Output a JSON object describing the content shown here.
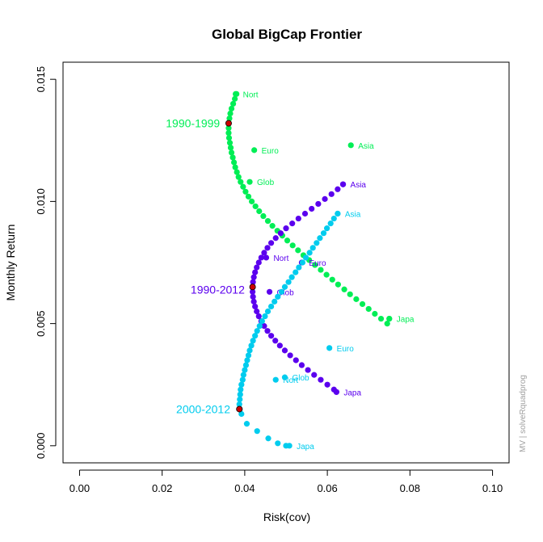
{
  "chart_data": {
    "type": "scatter",
    "title": "Global BigCap Frontier",
    "xlabel": "Risk(cov)",
    "ylabel": "Monthly Return",
    "xlim": [
      -0.004,
      0.104
    ],
    "ylim": [
      -0.0007,
      0.0157
    ],
    "xticks": [
      "0.00",
      "0.02",
      "0.04",
      "0.06",
      "0.08",
      "0.10"
    ],
    "yticks": [
      "0.000",
      "0.005",
      "0.010",
      "0.015"
    ],
    "grid": false,
    "legend": "none",
    "credit": "MV | solveRquadprog",
    "series": [
      {
        "name": "1990-1999",
        "color": "#00ee55",
        "frontier": [
          [
            0.038,
            0.0144
          ],
          [
            0.0376,
            0.0142
          ],
          [
            0.0372,
            0.014
          ],
          [
            0.0368,
            0.0138
          ],
          [
            0.0365,
            0.0136
          ],
          [
            0.0363,
            0.0134
          ],
          [
            0.0361,
            0.0132
          ],
          [
            0.0361,
            0.013
          ],
          [
            0.0361,
            0.0128
          ],
          [
            0.0362,
            0.0126
          ],
          [
            0.0364,
            0.0124
          ],
          [
            0.0366,
            0.0122
          ],
          [
            0.0368,
            0.012
          ],
          [
            0.0371,
            0.0118
          ],
          [
            0.0374,
            0.0116
          ],
          [
            0.0377,
            0.0114
          ],
          [
            0.0381,
            0.0112
          ],
          [
            0.0385,
            0.011
          ],
          [
            0.039,
            0.0108
          ],
          [
            0.0396,
            0.0106
          ],
          [
            0.0402,
            0.0104
          ],
          [
            0.0409,
            0.0102
          ],
          [
            0.0417,
            0.01
          ],
          [
            0.0426,
            0.0098
          ],
          [
            0.0435,
            0.0096
          ],
          [
            0.0445,
            0.0094
          ],
          [
            0.0456,
            0.0092
          ],
          [
            0.0467,
            0.009
          ],
          [
            0.0479,
            0.0088
          ],
          [
            0.0491,
            0.0086
          ],
          [
            0.0503,
            0.0084
          ],
          [
            0.0516,
            0.0082
          ],
          [
            0.0529,
            0.008
          ],
          [
            0.0542,
            0.0078
          ],
          [
            0.0556,
            0.0076
          ],
          [
            0.057,
            0.0074
          ],
          [
            0.0584,
            0.0072
          ],
          [
            0.0598,
            0.007
          ],
          [
            0.0612,
            0.0068
          ],
          [
            0.0626,
            0.0066
          ],
          [
            0.0641,
            0.0064
          ],
          [
            0.0655,
            0.0062
          ],
          [
            0.067,
            0.006
          ],
          [
            0.0685,
            0.0058
          ],
          [
            0.07,
            0.0056
          ],
          [
            0.0715,
            0.0054
          ],
          [
            0.073,
            0.0052
          ],
          [
            0.0745,
            0.005
          ],
          [
            0.075,
            0.0052
          ]
        ],
        "min_variance": [
          0.0361,
          0.0132
        ],
        "assets": [
          {
            "name": "Nort",
            "x": 0.0378,
            "y": 0.0144
          },
          {
            "name": "Euro",
            "x": 0.0423,
            "y": 0.0121
          },
          {
            "name": "Asia",
            "x": 0.0657,
            "y": 0.0123
          },
          {
            "name": "Glob",
            "x": 0.0412,
            "y": 0.0108
          },
          {
            "name": "Japa",
            "x": 0.075,
            "y": 0.0052
          }
        ],
        "label_anchor": [
          0.034,
          0.0132
        ]
      },
      {
        "name": "1990-2012",
        "color": "#5b00ee",
        "frontier": [
          [
            0.0638,
            0.0107
          ],
          [
            0.0625,
            0.0105
          ],
          [
            0.061,
            0.0103
          ],
          [
            0.0594,
            0.0101
          ],
          [
            0.0578,
            0.0099
          ],
          [
            0.0562,
            0.0097
          ],
          [
            0.0546,
            0.0095
          ],
          [
            0.053,
            0.0093
          ],
          [
            0.0515,
            0.0091
          ],
          [
            0.05,
            0.0089
          ],
          [
            0.0487,
            0.0087
          ],
          [
            0.0475,
            0.0085
          ],
          [
            0.0464,
            0.0083
          ],
          [
            0.0455,
            0.0081
          ],
          [
            0.0447,
            0.0079
          ],
          [
            0.044,
            0.0077
          ],
          [
            0.0434,
            0.0075
          ],
          [
            0.0429,
            0.0073
          ],
          [
            0.0425,
            0.0071
          ],
          [
            0.0422,
            0.0069
          ],
          [
            0.042,
            0.0067
          ],
          [
            0.0419,
            0.0065
          ],
          [
            0.0419,
            0.0063
          ],
          [
            0.042,
            0.0061
          ],
          [
            0.0422,
            0.0059
          ],
          [
            0.0425,
            0.0057
          ],
          [
            0.0429,
            0.0055
          ],
          [
            0.0434,
            0.0053
          ],
          [
            0.044,
            0.0051
          ],
          [
            0.0447,
            0.0049
          ],
          [
            0.0455,
            0.0047
          ],
          [
            0.0464,
            0.0045
          ],
          [
            0.0474,
            0.0043
          ],
          [
            0.0485,
            0.0041
          ],
          [
            0.0497,
            0.0039
          ],
          [
            0.051,
            0.0037
          ],
          [
            0.0524,
            0.0035
          ],
          [
            0.0538,
            0.0033
          ],
          [
            0.0553,
            0.0031
          ],
          [
            0.0568,
            0.0029
          ],
          [
            0.0584,
            0.0027
          ],
          [
            0.06,
            0.0025
          ],
          [
            0.0616,
            0.0023
          ],
          [
            0.0622,
            0.0022
          ]
        ],
        "min_variance": [
          0.0419,
          0.0065
        ],
        "assets": [
          {
            "name": "Asia",
            "x": 0.0638,
            "y": 0.0107
          },
          {
            "name": "Nort",
            "x": 0.0452,
            "y": 0.0077
          },
          {
            "name": "Euro",
            "x": 0.0538,
            "y": 0.0075
          },
          {
            "name": "Glob",
            "x": 0.046,
            "y": 0.0063
          },
          {
            "name": "Japa",
            "x": 0.0622,
            "y": 0.0022
          }
        ],
        "label_anchor": [
          0.04,
          0.0064
        ]
      },
      {
        "name": "2000-2012",
        "color": "#00ccee",
        "frontier": [
          [
            0.0625,
            0.0095
          ],
          [
            0.0616,
            0.0093
          ],
          [
            0.0608,
            0.0091
          ],
          [
            0.0599,
            0.0089
          ],
          [
            0.0591,
            0.0087
          ],
          [
            0.0582,
            0.0085
          ],
          [
            0.0574,
            0.0083
          ],
          [
            0.0565,
            0.0081
          ],
          [
            0.0557,
            0.0079
          ],
          [
            0.0548,
            0.0077
          ],
          [
            0.054,
            0.0075
          ],
          [
            0.0531,
            0.0073
          ],
          [
            0.0523,
            0.0071
          ],
          [
            0.0514,
            0.0069
          ],
          [
            0.0506,
            0.0067
          ],
          [
            0.0497,
            0.0065
          ],
          [
            0.0489,
            0.0063
          ],
          [
            0.048,
            0.0061
          ],
          [
            0.0472,
            0.0059
          ],
          [
            0.0464,
            0.0057
          ],
          [
            0.0456,
            0.0055
          ],
          [
            0.0449,
            0.0053
          ],
          [
            0.0442,
            0.0051
          ],
          [
            0.0436,
            0.0049
          ],
          [
            0.043,
            0.0047
          ],
          [
            0.0425,
            0.0045
          ],
          [
            0.042,
            0.0043
          ],
          [
            0.0416,
            0.0041
          ],
          [
            0.0412,
            0.0039
          ],
          [
            0.0409,
            0.0037
          ],
          [
            0.0406,
            0.0035
          ],
          [
            0.0403,
            0.0033
          ],
          [
            0.04,
            0.0031
          ],
          [
            0.0397,
            0.0029
          ],
          [
            0.0395,
            0.0027
          ],
          [
            0.0392,
            0.0025
          ],
          [
            0.039,
            0.0023
          ],
          [
            0.0389,
            0.0021
          ],
          [
            0.0388,
            0.0019
          ],
          [
            0.0387,
            0.0017
          ],
          [
            0.0388,
            0.0015
          ],
          [
            0.0392,
            0.0013
          ],
          [
            0.0405,
            0.0009
          ],
          [
            0.043,
            0.0006
          ],
          [
            0.0457,
            0.0003
          ],
          [
            0.048,
            0.0001
          ],
          [
            0.05,
            0.0
          ]
        ],
        "min_variance": [
          0.0387,
          0.0015
        ],
        "assets": [
          {
            "name": "Asia",
            "x": 0.0625,
            "y": 0.0095
          },
          {
            "name": "Euro",
            "x": 0.0605,
            "y": 0.004
          },
          {
            "name": "Glob",
            "x": 0.0497,
            "y": 0.0028
          },
          {
            "name": "Nort",
            "x": 0.0475,
            "y": 0.0027
          },
          {
            "name": "Japa",
            "x": 0.0508,
            "y": 0.0
          }
        ],
        "label_anchor": [
          0.0365,
          0.0015
        ]
      }
    ]
  }
}
